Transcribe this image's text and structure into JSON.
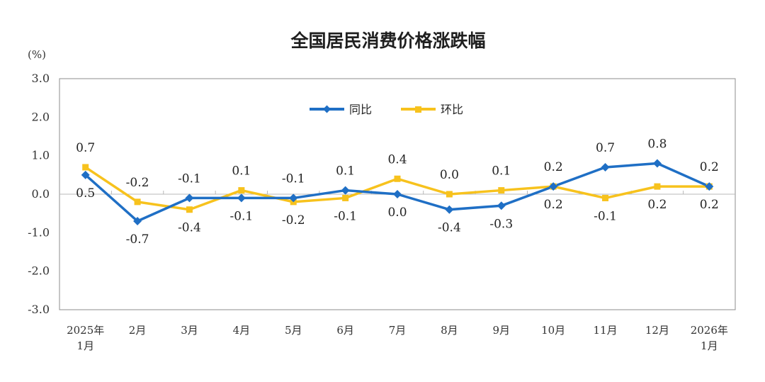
{
  "chart_data": {
    "type": "line",
    "title": "全国居民消费价格涨跌幅",
    "unit": "(%)",
    "ylim": [
      -3.0,
      3.0
    ],
    "yticks": [
      "3.0",
      "2.0",
      "1.0",
      "0.0",
      "-1.0",
      "-2.0",
      "-3.0"
    ],
    "grid": false,
    "legend_position": "top-center",
    "categories": [
      [
        "2025年",
        "1月"
      ],
      [
        "2月"
      ],
      [
        "3月"
      ],
      [
        "4月"
      ],
      [
        "5月"
      ],
      [
        "6月"
      ],
      [
        "7月"
      ],
      [
        "8月"
      ],
      [
        "9月"
      ],
      [
        "10月"
      ],
      [
        "11月"
      ],
      [
        "12月"
      ],
      [
        "2026年",
        "1月"
      ]
    ],
    "series": [
      {
        "name": "同比",
        "color": "#1f6fc5",
        "marker": "diamond",
        "values": [
          0.5,
          -0.7,
          -0.1,
          -0.1,
          -0.1,
          0.1,
          0.0,
          -0.4,
          -0.3,
          0.2,
          0.7,
          0.8,
          0.2
        ],
        "labels": [
          "0.5",
          "-0.7",
          "-0.1",
          "-0.1",
          "-0.1",
          "0.1",
          "0.0",
          "-0.4",
          "-0.3",
          "0.2",
          "0.7",
          "0.8",
          "0.2"
        ]
      },
      {
        "name": "环比",
        "color": "#f7c21d",
        "marker": "square",
        "values": [
          0.7,
          -0.2,
          -0.4,
          0.1,
          -0.2,
          -0.1,
          0.4,
          0.0,
          0.1,
          0.2,
          -0.1,
          0.2,
          0.2
        ],
        "labels": [
          "0.7",
          "-0.2",
          "-0.4",
          "0.1",
          "-0.2",
          "-0.1",
          "0.4",
          "0.0",
          "0.1",
          "0.2",
          "-0.1",
          "0.2",
          "0.2"
        ]
      }
    ]
  }
}
